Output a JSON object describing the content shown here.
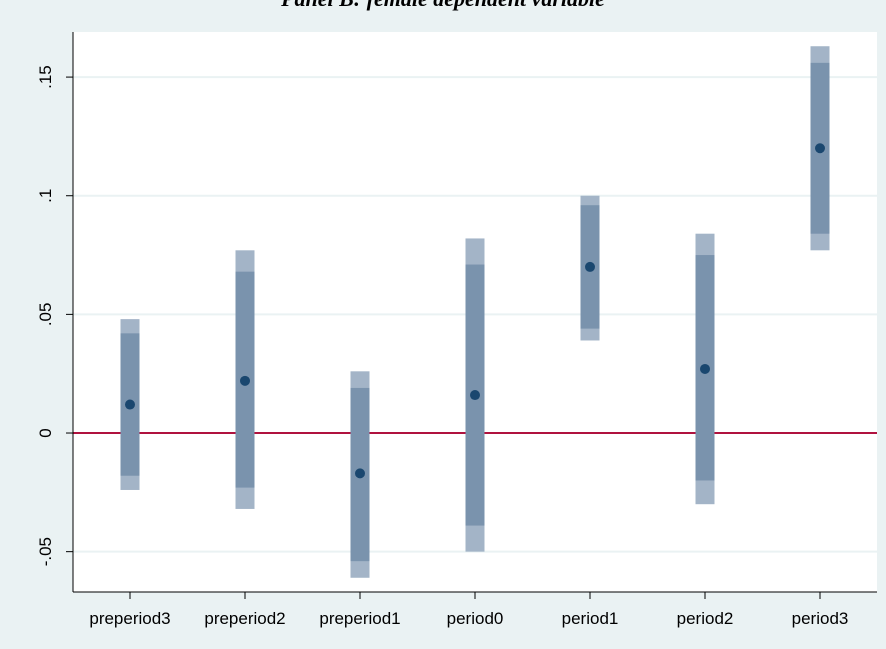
{
  "chart_data": {
    "type": "errorbar",
    "title": "Panel B: female dependent variable",
    "xlabel": "",
    "ylabel": "",
    "categories": [
      "preperiod3",
      "preperiod2",
      "preperiod1",
      "period0",
      "period1",
      "period2",
      "period3"
    ],
    "points": [
      0.012,
      0.022,
      -0.017,
      0.016,
      0.07,
      0.027,
      0.12
    ],
    "ci_inner": [
      [
        -0.018,
        0.042
      ],
      [
        -0.023,
        0.068
      ],
      [
        -0.054,
        0.019
      ],
      [
        -0.039,
        0.071
      ],
      [
        0.044,
        0.096
      ],
      [
        -0.02,
        0.075
      ],
      [
        0.084,
        0.156
      ]
    ],
    "ci_outer": [
      [
        -0.024,
        0.048
      ],
      [
        -0.032,
        0.077
      ],
      [
        -0.061,
        0.026
      ],
      [
        -0.05,
        0.082
      ],
      [
        0.039,
        0.1
      ],
      [
        -0.03,
        0.084
      ],
      [
        0.077,
        0.163
      ]
    ],
    "yticks": [
      -0.05,
      0,
      0.05,
      0.1,
      0.15
    ],
    "ytick_labels": [
      "-.05",
      "0",
      ".05",
      ".1",
      ".15"
    ],
    "ylim": [
      -0.067,
      0.169
    ],
    "reference_line": 0,
    "grid": true,
    "colors": {
      "plot_bg": "#ffffff",
      "outer_bg": "#eaf2f3",
      "grid": "#eaf2f3",
      "inner_ci": "#7a93ad",
      "outer_ci": "#a3b4c7",
      "point": "#1a476f",
      "reference": "#b0123f"
    }
  }
}
